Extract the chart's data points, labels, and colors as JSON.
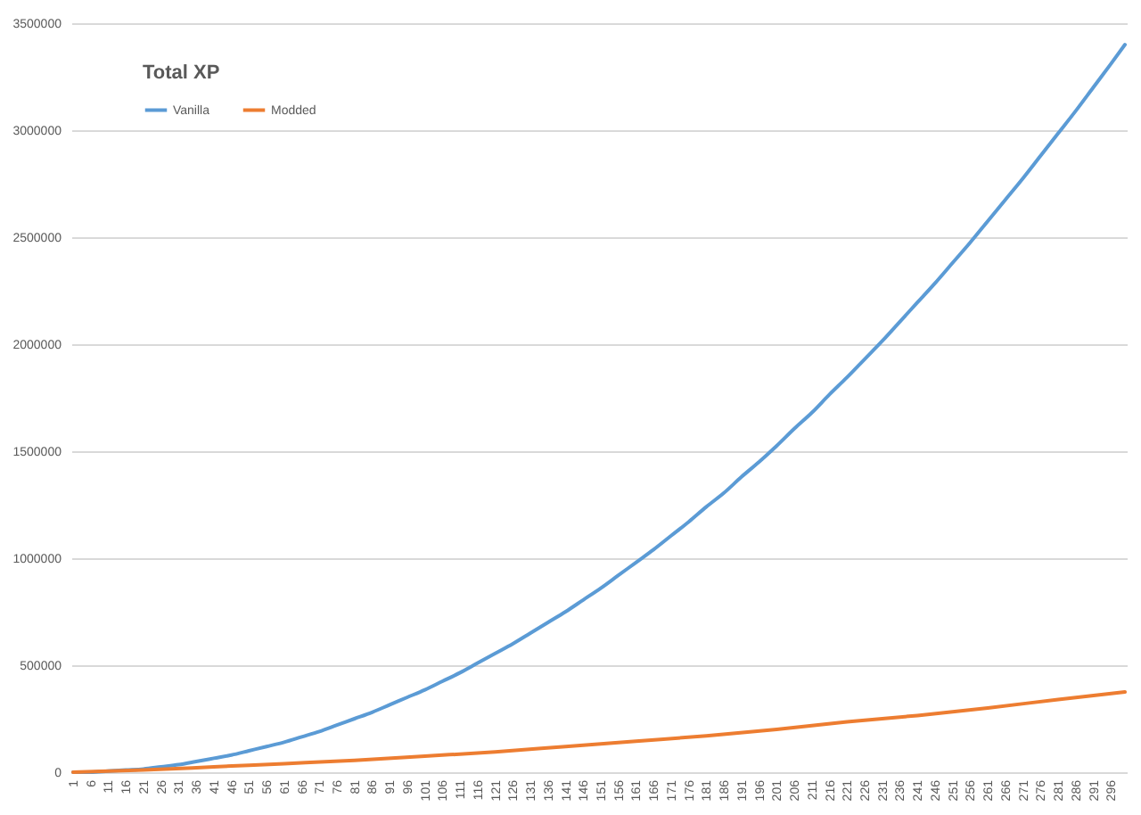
{
  "chart_data": {
    "type": "line",
    "title": "Total XP",
    "xlim": [
      0.5,
      300.5
    ],
    "xticks": [
      1,
      6,
      11,
      16,
      21,
      26,
      31,
      36,
      41,
      46,
      51,
      56,
      61,
      66,
      71,
      76,
      81,
      86,
      91,
      96,
      101,
      106,
      111,
      116,
      121,
      126,
      131,
      136,
      141,
      146,
      151,
      156,
      161,
      166,
      171,
      176,
      181,
      186,
      191,
      196,
      201,
      206,
      211,
      216,
      221,
      226,
      231,
      236,
      241,
      246,
      251,
      256,
      261,
      266,
      271,
      276,
      281,
      286,
      291,
      296
    ],
    "ylim": [
      0,
      3500000
    ],
    "yticks": [
      0,
      500000,
      1000000,
      1500000,
      2000000,
      2500000,
      3000000,
      3500000
    ],
    "series": [
      {
        "name": "Vanilla",
        "color": "#5b9bd5",
        "x": [
          1,
          6,
          11,
          16,
          21,
          26,
          31,
          36,
          41,
          46,
          51,
          56,
          61,
          66,
          71,
          76,
          81,
          86,
          91,
          96,
          101,
          106,
          111,
          116,
          121,
          126,
          131,
          136,
          141,
          146,
          151,
          156,
          161,
          166,
          171,
          176,
          181,
          186,
          191,
          196,
          201,
          206,
          211,
          216,
          221,
          226,
          231,
          236,
          241,
          246,
          251,
          256,
          261,
          266,
          271,
          276,
          281,
          286,
          291,
          296,
          300
        ],
        "values": [
          0,
          0,
          5000,
          10000,
          15000,
          25000,
          35000,
          50000,
          65000,
          80000,
          100000,
          120000,
          140000,
          165000,
          190000,
          220000,
          250000,
          280000,
          315000,
          350000,
          385000,
          425000,
          465000,
          510000,
          555000,
          600000,
          650000,
          700000,
          750000,
          805000,
          860000,
          920000,
          980000,
          1040000,
          1105000,
          1170000,
          1240000,
          1305000,
          1380000,
          1450000,
          1525000,
          1605000,
          1680000,
          1765000,
          1845000,
          1930000,
          2015000,
          2105000,
          2195000,
          2285000,
          2380000,
          2475000,
          2575000,
          2675000,
          2775000,
          2880000,
          2985000,
          3090000,
          3200000,
          3310000,
          3400000
        ]
      },
      {
        "name": "Modded",
        "color": "#ed7d31",
        "x": [
          1,
          21,
          41,
          61,
          81,
          101,
          121,
          141,
          161,
          181,
          201,
          221,
          241,
          261,
          281,
          300
        ],
        "values": [
          0,
          10000,
          25000,
          40000,
          55000,
          75000,
          95000,
          120000,
          145000,
          170000,
          200000,
          235000,
          265000,
          300000,
          340000,
          375000
        ]
      }
    ],
    "grid": "y",
    "legend": "top left",
    "line_style": "solid"
  }
}
